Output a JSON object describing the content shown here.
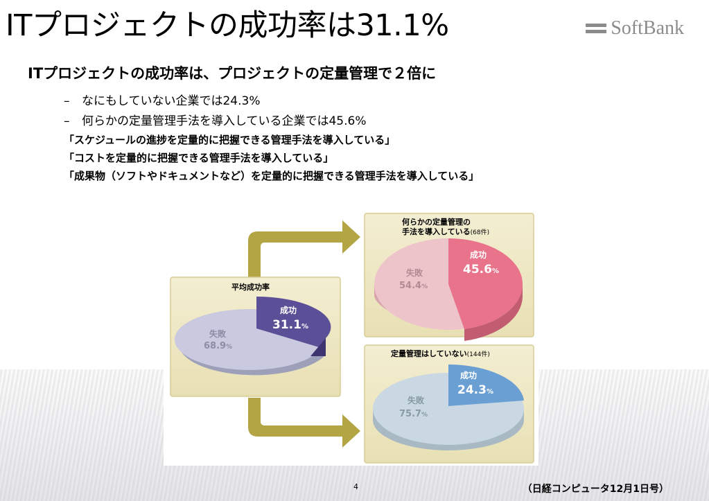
{
  "slide": {
    "title": "ITプロジェクトの成功率は31.1%",
    "logo": "SoftBank",
    "heading": "ITプロジェクトの成功率は、プロジェクトの定量管理で２倍に",
    "bullets": [
      {
        "dash": "–",
        "text": "なにもしていない企業では24.3%"
      },
      {
        "dash": "–",
        "text": "何らかの定量管理手法を導入している企業では45.6%"
      }
    ],
    "quotes": [
      "「スケジュールの進捗を定量的に把握できる管理手法を導入している」",
      "「コストを定量的に把握できる管理手法を導入している」",
      "「成果物（ソフトやドキュメントなど）を定量的に把握できる管理手法を導入している」"
    ],
    "page_number": "4",
    "source": "（日経コンピュータ12月1日号）"
  },
  "figure": {
    "average": {
      "title": "平均成功率",
      "success_label": "成功",
      "success_value": "31.1",
      "fail_label": "失敗",
      "fail_value": "68.9",
      "unit": "%"
    },
    "with_mgmt": {
      "title_line1": "何らかの定量管理の",
      "title_line2": "手法を導入している",
      "count": "(68件)",
      "success_label": "成功",
      "success_value": "45.6",
      "fail_label": "失敗",
      "fail_value": "54.4",
      "unit": "%"
    },
    "without_mgmt": {
      "title": "定量管理はしていない",
      "count": "(144件)",
      "success_label": "成功",
      "success_value": "24.3",
      "fail_label": "失敗",
      "fail_value": "75.7",
      "unit": "%"
    }
  },
  "colors": {
    "panel_bg": "#efe9c6",
    "panel_border": "#d6cc93",
    "arrow": "#b3a444",
    "avg_success": "#5b4f98",
    "avg_fail": "#c9c9df",
    "with_success": "#e8738a",
    "with_fail": "#eec4cb",
    "without_success": "#6a9fd4",
    "without_fail": "#c9d8e2",
    "logo_gray": "#8b8b8b"
  }
}
